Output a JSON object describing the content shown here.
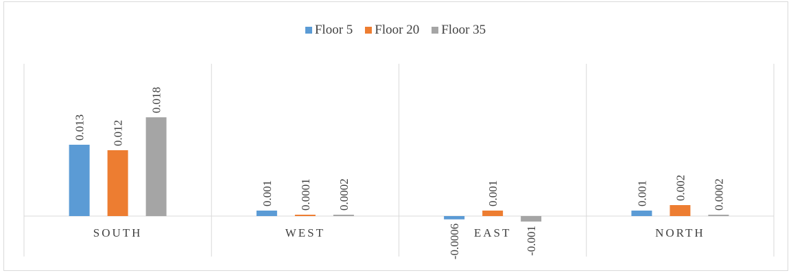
{
  "chart_data": {
    "type": "bar",
    "categories": [
      "SOUTH",
      "WEST",
      "EAST",
      "NORTH"
    ],
    "series": [
      {
        "name": "Floor 5",
        "color": "#5b9bd5",
        "values": [
          0.013,
          0.001,
          -0.0006,
          0.001
        ],
        "labels": [
          "0.013",
          "0.001",
          "-0.0006",
          "0.001"
        ]
      },
      {
        "name": "Floor 20",
        "color": "#ed7d31",
        "values": [
          0.012,
          0.0001,
          0.001,
          0.002
        ],
        "labels": [
          "0.012",
          "0.0001",
          "0.001",
          "0.002"
        ]
      },
      {
        "name": "Floor 35",
        "color": "#a5a5a5",
        "values": [
          0.018,
          0.0002,
          -0.001,
          0.0002
        ],
        "labels": [
          "0.018",
          "0.0002",
          "-0.001",
          "0.0002"
        ]
      }
    ],
    "legend_position": "top",
    "grid": false,
    "ylim": [
      -0.003,
      0.02
    ],
    "title": "",
    "xlabel": "",
    "ylabel": ""
  }
}
